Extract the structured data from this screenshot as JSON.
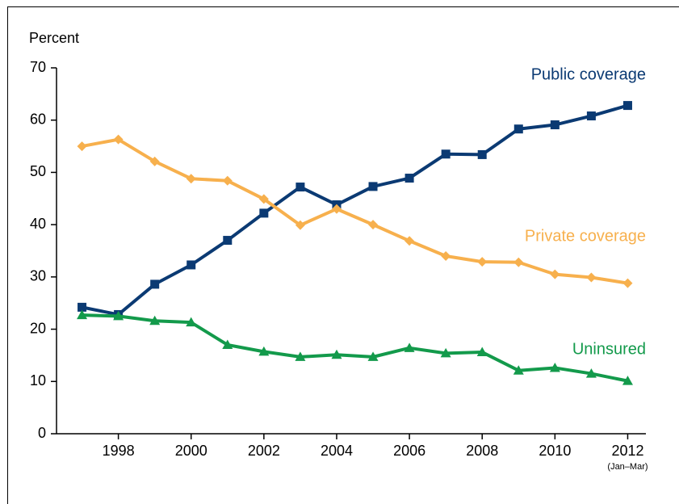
{
  "chart_data": {
    "type": "line",
    "y_label": "Percent",
    "x": [
      1997,
      1998,
      1999,
      2000,
      2001,
      2002,
      2003,
      2004,
      2005,
      2006,
      2007,
      2008,
      2009,
      2010,
      2011,
      2012
    ],
    "series": [
      {
        "name": "Public coverage",
        "color": "#0b3a73",
        "marker": "square",
        "values": [
          24.2,
          22.8,
          28.6,
          32.3,
          37.0,
          42.2,
          47.2,
          43.8,
          47.3,
          48.9,
          53.5,
          53.4,
          58.3,
          59.1,
          60.8,
          62.8
        ]
      },
      {
        "name": "Private coverage",
        "color": "#f7b04d",
        "marker": "diamond",
        "values": [
          55.0,
          56.3,
          52.1,
          48.8,
          48.4,
          44.9,
          39.9,
          43.0,
          40.0,
          36.9,
          34.0,
          32.9,
          32.8,
          30.5,
          29.9,
          28.8
        ]
      },
      {
        "name": "Uninsured",
        "color": "#139a4b",
        "marker": "triangle",
        "values": [
          22.7,
          22.5,
          21.6,
          21.3,
          17.0,
          15.7,
          14.7,
          15.1,
          14.7,
          16.4,
          15.4,
          15.6,
          12.1,
          12.6,
          11.5,
          10.1
        ]
      }
    ],
    "xlim": [
      1996.3,
      2012.5
    ],
    "xticks": [
      1998,
      2000,
      2002,
      2004,
      2006,
      2008,
      2010,
      2012
    ],
    "x_note": "(Jan–Mar)",
    "ylim": [
      0,
      70
    ],
    "yticks": [
      0,
      10,
      20,
      30,
      40,
      50,
      60,
      70
    ],
    "grid": false
  }
}
